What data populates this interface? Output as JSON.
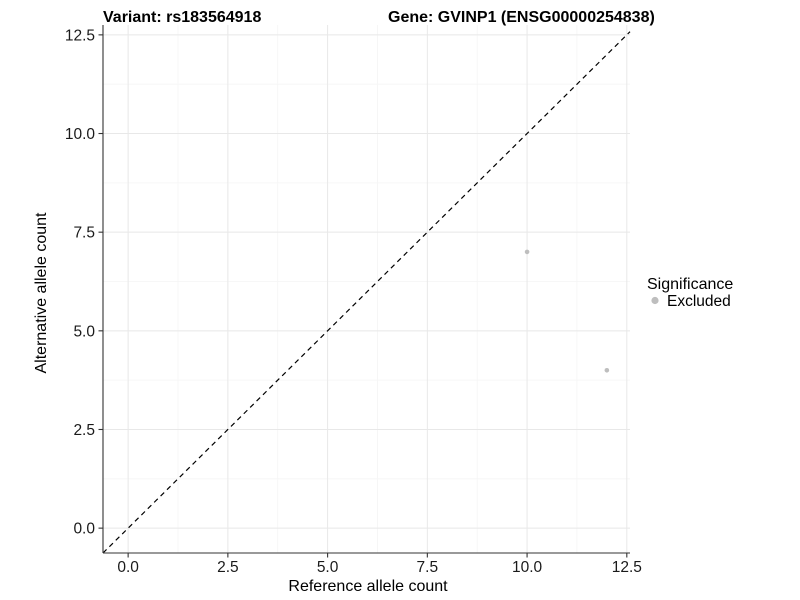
{
  "chart_data": {
    "type": "scatter",
    "title_left": "Variant: rs183564918",
    "title_right": "Gene: GVINP1 (ENSG00000254838)",
    "xlabel": "Reference allele count",
    "ylabel": "Alternative allele count",
    "xlim": [
      -0.63,
      12.58
    ],
    "ylim": [
      -0.63,
      12.75
    ],
    "x_ticks": [
      0.0,
      2.5,
      5.0,
      7.5,
      10.0,
      12.5
    ],
    "y_ticks": [
      0.0,
      2.5,
      5.0,
      7.5,
      10.0,
      12.5
    ],
    "x_tick_labels": [
      "0.0",
      "2.5",
      "5.0",
      "7.5",
      "10.0",
      "12.5"
    ],
    "y_tick_labels": [
      "0.0",
      "2.5",
      "5.0",
      "7.5",
      "10.0",
      "12.5"
    ],
    "minor_ticks": [
      1.25,
      3.75,
      6.25,
      8.75,
      11.25
    ],
    "grid": true,
    "reference_line": {
      "type": "identity",
      "equation": "y = x",
      "style": "dashed",
      "color": "#000000"
    },
    "series": [
      {
        "name": "Excluded",
        "color": "#bebebe",
        "points": [
          {
            "x": 10,
            "y": 7
          },
          {
            "x": 12,
            "y": 4
          }
        ]
      }
    ],
    "legend": {
      "title": "Significance",
      "position": "right",
      "items": [
        {
          "label": "Excluded",
          "color": "#bebebe"
        }
      ]
    }
  },
  "colors": {
    "background": "#ffffff",
    "grid_major": "#e8e8e8",
    "grid_minor": "#f5f5f5",
    "axis": "#333333",
    "tick_text": "#1a1a1a",
    "point": "#bebebe",
    "reference_line": "#000000",
    "text": "#000000"
  }
}
